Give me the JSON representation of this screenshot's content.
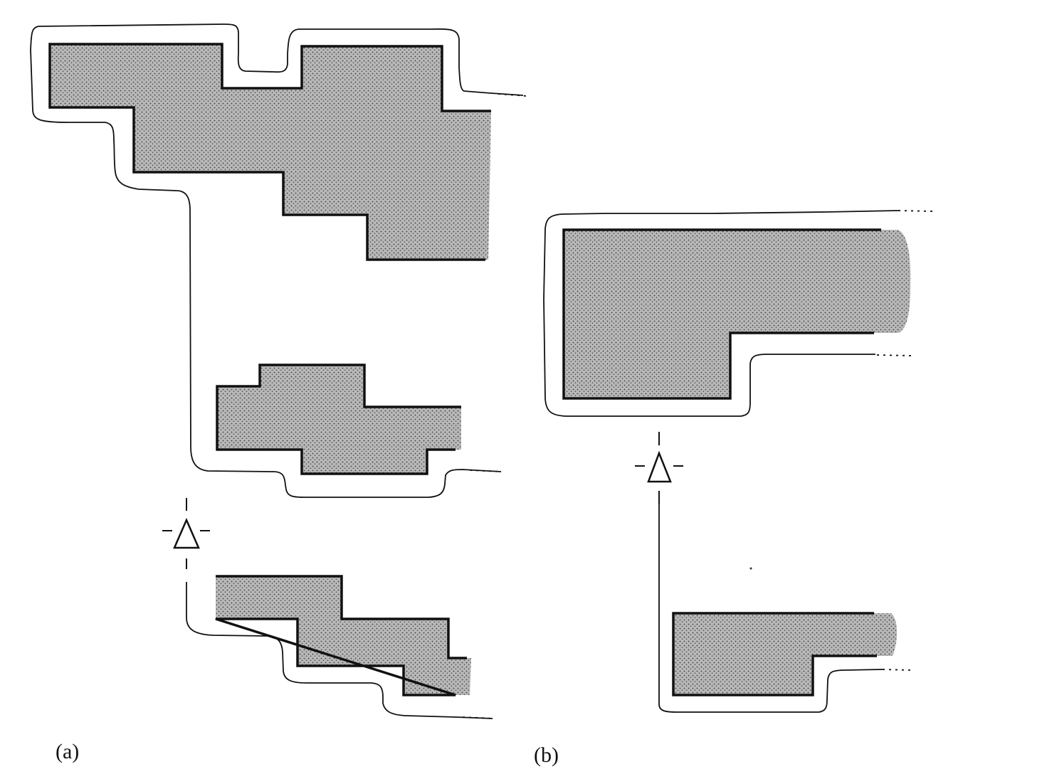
{
  "figure": {
    "panels": [
      {
        "id": "a",
        "label": "(a)"
      },
      {
        "id": "b",
        "label": "(b)"
      }
    ],
    "colors": {
      "obstacle_fill": "#9a9a9a",
      "outline": "#111111",
      "background": "#ffffff"
    },
    "icons": [
      "triangle-marker-icon"
    ]
  }
}
